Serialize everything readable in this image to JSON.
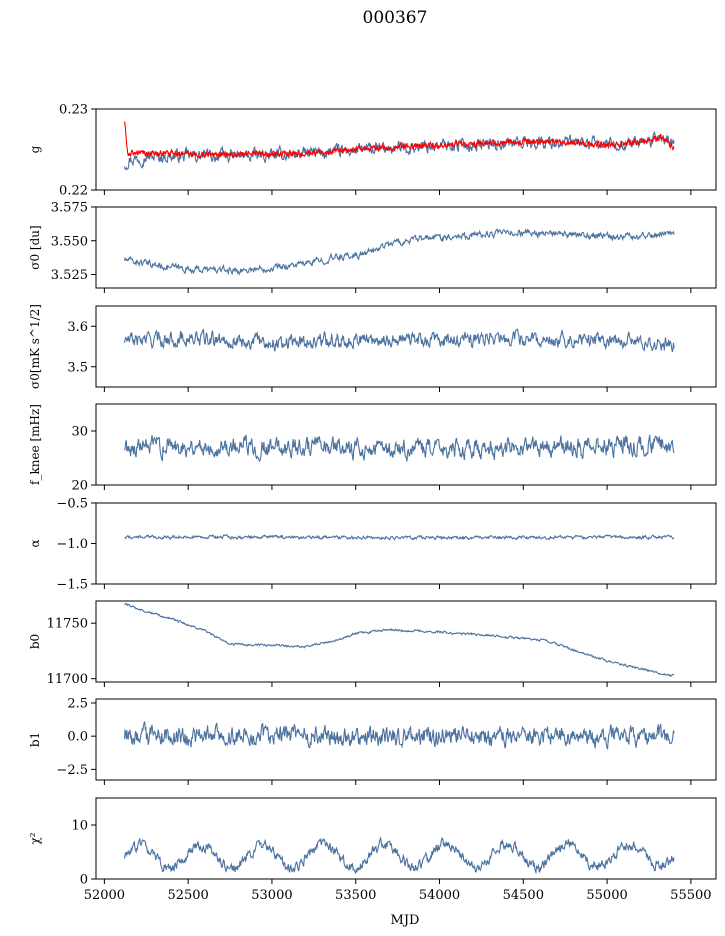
{
  "title": "000367",
  "xlabel": "MJD",
  "colors": {
    "series": "#4c72a0",
    "overlay": "#ff0000",
    "axis": "#000000"
  },
  "chart_data": {
    "type": "line",
    "title": "000367",
    "xlabel": "MJD",
    "xlim": [
      51950,
      55650
    ],
    "xticks": [
      "52000",
      "52500",
      "53000",
      "53500",
      "54000",
      "54500",
      "55000",
      "55500"
    ],
    "x_range": [
      52120,
      55400
    ],
    "panels": [
      {
        "ylabel": "g",
        "ylim": [
          0.22,
          0.23
        ],
        "yticks": [
          {
            "v": 0.22,
            "label": "0.22"
          },
          {
            "v": 0.23,
            "label": "0.23"
          }
        ],
        "keypoints": [
          [
            52120,
            0.2232
          ],
          [
            52150,
            0.2238
          ],
          [
            52250,
            0.2241
          ],
          [
            52500,
            0.2242
          ],
          [
            52800,
            0.2242
          ],
          [
            53000,
            0.2243
          ],
          [
            53300,
            0.2246
          ],
          [
            53600,
            0.225
          ],
          [
            53900,
            0.2254
          ],
          [
            54200,
            0.2256
          ],
          [
            54500,
            0.2259
          ],
          [
            54700,
            0.2259
          ],
          [
            55000,
            0.2256
          ],
          [
            55250,
            0.226
          ],
          [
            55330,
            0.2265
          ],
          [
            55400,
            0.2255
          ]
        ],
        "noise": 0.0007,
        "overlay": {
          "keypoints": [
            [
              52120,
              0.2285
            ],
            [
              52140,
              0.2245
            ],
            [
              52200,
              0.2245
            ],
            [
              52500,
              0.2245
            ],
            [
              52800,
              0.2244
            ],
            [
              53000,
              0.2244
            ],
            [
              53300,
              0.2246
            ],
            [
              53600,
              0.2251
            ],
            [
              53900,
              0.2255
            ],
            [
              54200,
              0.2257
            ],
            [
              54500,
              0.226
            ],
            [
              54700,
              0.2259
            ],
            [
              55000,
              0.2256
            ],
            [
              55250,
              0.226
            ],
            [
              55330,
              0.2266
            ],
            [
              55400,
              0.2251
            ]
          ],
          "noise": 0.0003
        }
      },
      {
        "ylabel": "σ0 [du]",
        "ylim": [
          3.515,
          3.575
        ],
        "yticks": [
          {
            "v": 3.525,
            "label": "3.525"
          },
          {
            "v": 3.55,
            "label": "3.550"
          },
          {
            "v": 3.575,
            "label": "3.575"
          }
        ],
        "keypoints": [
          [
            52120,
            3.536
          ],
          [
            52300,
            3.532
          ],
          [
            52500,
            3.529
          ],
          [
            52800,
            3.528
          ],
          [
            53000,
            3.53
          ],
          [
            53200,
            3.533
          ],
          [
            53400,
            3.538
          ],
          [
            53550,
            3.54
          ],
          [
            53700,
            3.548
          ],
          [
            54000,
            3.553
          ],
          [
            54300,
            3.555
          ],
          [
            54500,
            3.556
          ],
          [
            54800,
            3.554
          ],
          [
            55100,
            3.553
          ],
          [
            55400,
            3.556
          ]
        ],
        "noise": 0.0022
      },
      {
        "ylabel": "σ0[mK s^1/2]",
        "ylim": [
          3.45,
          3.65
        ],
        "yticks": [
          {
            "v": 3.5,
            "label": "3.5"
          },
          {
            "v": 3.6,
            "label": "3.6"
          }
        ],
        "keypoints": [
          [
            52120,
            3.565
          ],
          [
            52500,
            3.57
          ],
          [
            53000,
            3.56
          ],
          [
            53500,
            3.568
          ],
          [
            54000,
            3.565
          ],
          [
            54500,
            3.57
          ],
          [
            55000,
            3.565
          ],
          [
            55400,
            3.555
          ]
        ],
        "noise": 0.016
      },
      {
        "ylabel": "f_knee [mHz]",
        "ylim": [
          20,
          35
        ],
        "yticks": [
          {
            "v": 20,
            "label": "20"
          },
          {
            "v": 30,
            "label": "30"
          }
        ],
        "keypoints": [
          [
            52120,
            27
          ],
          [
            52500,
            27.3
          ],
          [
            53000,
            27
          ],
          [
            53500,
            26.8
          ],
          [
            54000,
            26.5
          ],
          [
            54500,
            27
          ],
          [
            55000,
            27.2
          ],
          [
            55400,
            27.5
          ]
        ],
        "noise": 1.6
      },
      {
        "ylabel": "α",
        "ylim": [
          -1.5,
          -0.5
        ],
        "yticks": [
          {
            "v": -1.5,
            "label": "−1.5"
          },
          {
            "v": -1.0,
            "label": "−1.0"
          },
          {
            "v": -0.5,
            "label": "−0.5"
          }
        ],
        "keypoints": [
          [
            52120,
            -0.92
          ],
          [
            53000,
            -0.92
          ],
          [
            54000,
            -0.93
          ],
          [
            55000,
            -0.92
          ],
          [
            55400,
            -0.92
          ]
        ],
        "noise": 0.018
      },
      {
        "ylabel": "b0",
        "ylim": [
          11697,
          11770
        ],
        "yticks": [
          {
            "v": 11700,
            "label": "11700"
          },
          {
            "v": 11750,
            "label": "11750"
          }
        ],
        "keypoints": [
          [
            52120,
            11768
          ],
          [
            52200,
            11763
          ],
          [
            52400,
            11754
          ],
          [
            52600,
            11743
          ],
          [
            52700,
            11735
          ],
          [
            52750,
            11731
          ],
          [
            53000,
            11730
          ],
          [
            53200,
            11729
          ],
          [
            53400,
            11735
          ],
          [
            53500,
            11741
          ],
          [
            53700,
            11744
          ],
          [
            54000,
            11742
          ],
          [
            54300,
            11739
          ],
          [
            54650,
            11734
          ],
          [
            54800,
            11726
          ],
          [
            55000,
            11716
          ],
          [
            55200,
            11709
          ],
          [
            55380,
            11703
          ],
          [
            55400,
            11703
          ]
        ],
        "noise": 0.9
      },
      {
        "ylabel": "b1",
        "ylim": [
          -3.3,
          2.8
        ],
        "yticks": [
          {
            "v": -2.5,
            "label": "−2.5"
          },
          {
            "v": 0,
            "label": "0.0"
          },
          {
            "v": 2.5,
            "label": "2.5"
          }
        ],
        "keypoints": [
          [
            52120,
            0
          ],
          [
            55400,
            0
          ]
        ],
        "noise": 0.65
      },
      {
        "ylabel": "χ²",
        "ylim": [
          0,
          15
        ],
        "yticks": [
          {
            "v": 0,
            "label": "0"
          },
          {
            "v": 10,
            "label": "10"
          }
        ],
        "keypoints": [
          [
            52120,
            4
          ],
          [
            55400,
            4.5
          ]
        ],
        "noise": 0.9,
        "periodic": {
          "amplitude": 2.2,
          "period": 365
        }
      }
    ]
  }
}
